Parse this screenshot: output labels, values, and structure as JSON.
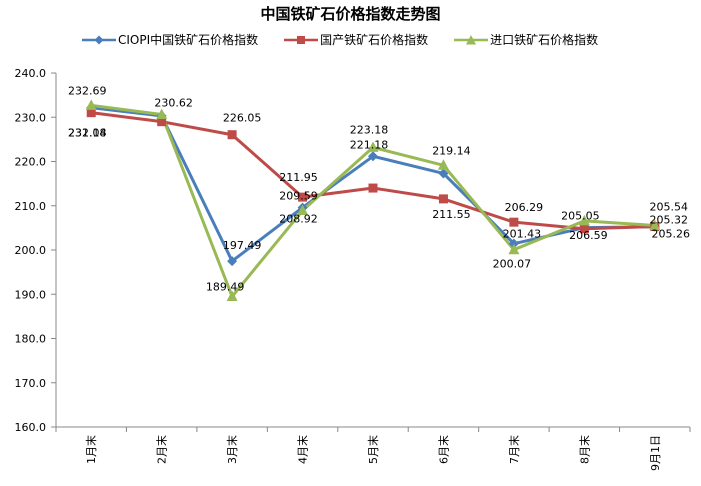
{
  "chart_data": {
    "type": "line",
    "title": "中国铁矿石价格指数走势图",
    "categories": [
      "1月末",
      "2月末",
      "3月末",
      "4月末",
      "5月末",
      "6月末",
      "7月末",
      "8月末",
      "9月1日"
    ],
    "series": [
      {
        "name": "CIOPI中国铁矿石价格指数",
        "color": "#4a7ebb",
        "marker": "diamond",
        "values": [
          232.18,
          230.3,
          197.49,
          209.59,
          221.18,
          217.3,
          201.43,
          205.05,
          205.26
        ],
        "labels": [
          "232.18",
          "",
          "197.49",
          "209.59",
          "221.18",
          "",
          "201.43",
          "205.05",
          "205.26"
        ]
      },
      {
        "name": "国产铁矿石价格指数",
        "color": "#be4b48",
        "marker": "square",
        "values": [
          231.04,
          229.0,
          226.05,
          211.95,
          214.0,
          211.55,
          206.29,
          204.8,
          205.32
        ],
        "labels": [
          "231.04",
          "",
          "226.05",
          "211.95",
          "",
          "211.55",
          "206.29",
          "",
          "205.32"
        ]
      },
      {
        "name": "进口铁矿石价格指数",
        "color": "#98b954",
        "marker": "triangle",
        "values": [
          232.69,
          230.62,
          189.49,
          208.92,
          223.18,
          219.14,
          200.07,
          206.59,
          205.54
        ],
        "labels": [
          "232.69",
          "230.62",
          "189.49",
          "208.92",
          "223.18",
          "219.14",
          "200.07",
          "206.59",
          "205.54"
        ]
      }
    ],
    "yticks": [
      "240.0",
      "230.0",
      "220.0",
      "210.0",
      "200.0",
      "190.0",
      "180.0",
      "170.0",
      "160.0"
    ],
    "ylim": [
      160,
      240
    ],
    "grid": false,
    "legend_position": "top"
  }
}
